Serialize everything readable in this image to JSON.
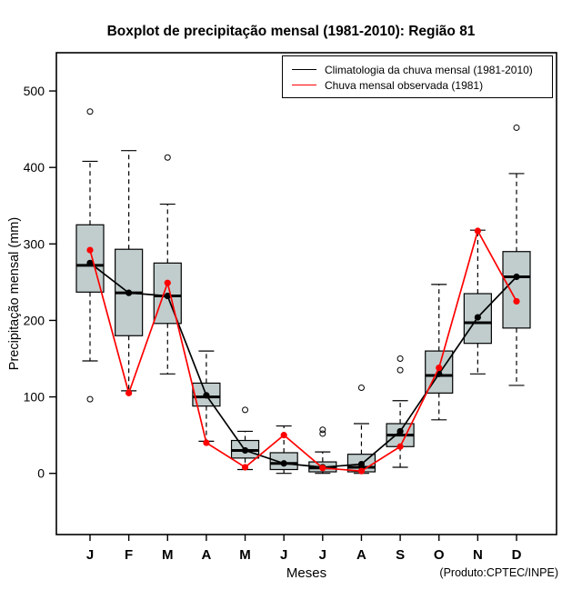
{
  "chart_data": {
    "type": "boxplot",
    "title": "Boxplot de precipitação mensal (1981-2010): Região 81",
    "xlabel": "Meses",
    "ylabel": "Precipitação mensal (mm)",
    "footnote": "(Produto:CPTEC/INPE)",
    "categories": [
      "J",
      "F",
      "M",
      "A",
      "M",
      "J",
      "J",
      "A",
      "S",
      "O",
      "N",
      "D"
    ],
    "yticks": [
      0,
      100,
      200,
      300,
      400,
      500
    ],
    "ylim": [
      -80,
      550
    ],
    "grid": false,
    "legend_position": "top-right",
    "box_fill": "#c1cdcd",
    "boxes": [
      {
        "month": "J",
        "q1": 237,
        "median": 272,
        "q3": 325,
        "whisker_low": 147,
        "whisker_high": 408,
        "outliers": [
          473,
          97
        ]
      },
      {
        "month": "F",
        "q1": 180,
        "median": 236,
        "q3": 293,
        "whisker_low": 108,
        "whisker_high": 422,
        "outliers": []
      },
      {
        "month": "M",
        "q1": 196,
        "median": 232,
        "q3": 275,
        "whisker_low": 130,
        "whisker_high": 352,
        "outliers": [
          413
        ]
      },
      {
        "month": "A",
        "q1": 88,
        "median": 100,
        "q3": 118,
        "whisker_low": 42,
        "whisker_high": 160,
        "outliers": []
      },
      {
        "month": "M",
        "q1": 20,
        "median": 30,
        "q3": 43,
        "whisker_low": 5,
        "whisker_high": 55,
        "outliers": [
          83
        ]
      },
      {
        "month": "J",
        "q1": 5,
        "median": 13,
        "q3": 27,
        "whisker_low": 0,
        "whisker_high": 62,
        "outliers": []
      },
      {
        "month": "J",
        "q1": 2,
        "median": 7,
        "q3": 15,
        "whisker_low": 0,
        "whisker_high": 28,
        "outliers": [
          57,
          52
        ]
      },
      {
        "month": "A",
        "q1": 2,
        "median": 8,
        "q3": 25,
        "whisker_low": 0,
        "whisker_high": 65,
        "outliers": [
          112
        ]
      },
      {
        "month": "S",
        "q1": 35,
        "median": 50,
        "q3": 65,
        "whisker_low": 8,
        "whisker_high": 95,
        "outliers": [
          150,
          135
        ]
      },
      {
        "month": "O",
        "q1": 105,
        "median": 128,
        "q3": 160,
        "whisker_low": 70,
        "whisker_high": 247,
        "outliers": []
      },
      {
        "month": "N",
        "q1": 170,
        "median": 197,
        "q3": 235,
        "whisker_low": 130,
        "whisker_high": 318,
        "outliers": []
      },
      {
        "month": "D",
        "q1": 190,
        "median": 257,
        "q3": 290,
        "whisker_low": 115,
        "whisker_high": 392,
        "outliers": [
          452
        ]
      }
    ],
    "series": [
      {
        "name": "Climatologia da chuva mensal (1981-2010)",
        "color": "#000000",
        "values": [
          275,
          236,
          232,
          102,
          30,
          13,
          8,
          12,
          55,
          130,
          204,
          257
        ]
      },
      {
        "name": "Chuva mensal observada (1981)",
        "color": "#ff0000",
        "values": [
          292,
          105,
          249,
          40,
          8,
          50,
          7,
          3,
          35,
          138,
          317,
          225
        ]
      }
    ]
  }
}
